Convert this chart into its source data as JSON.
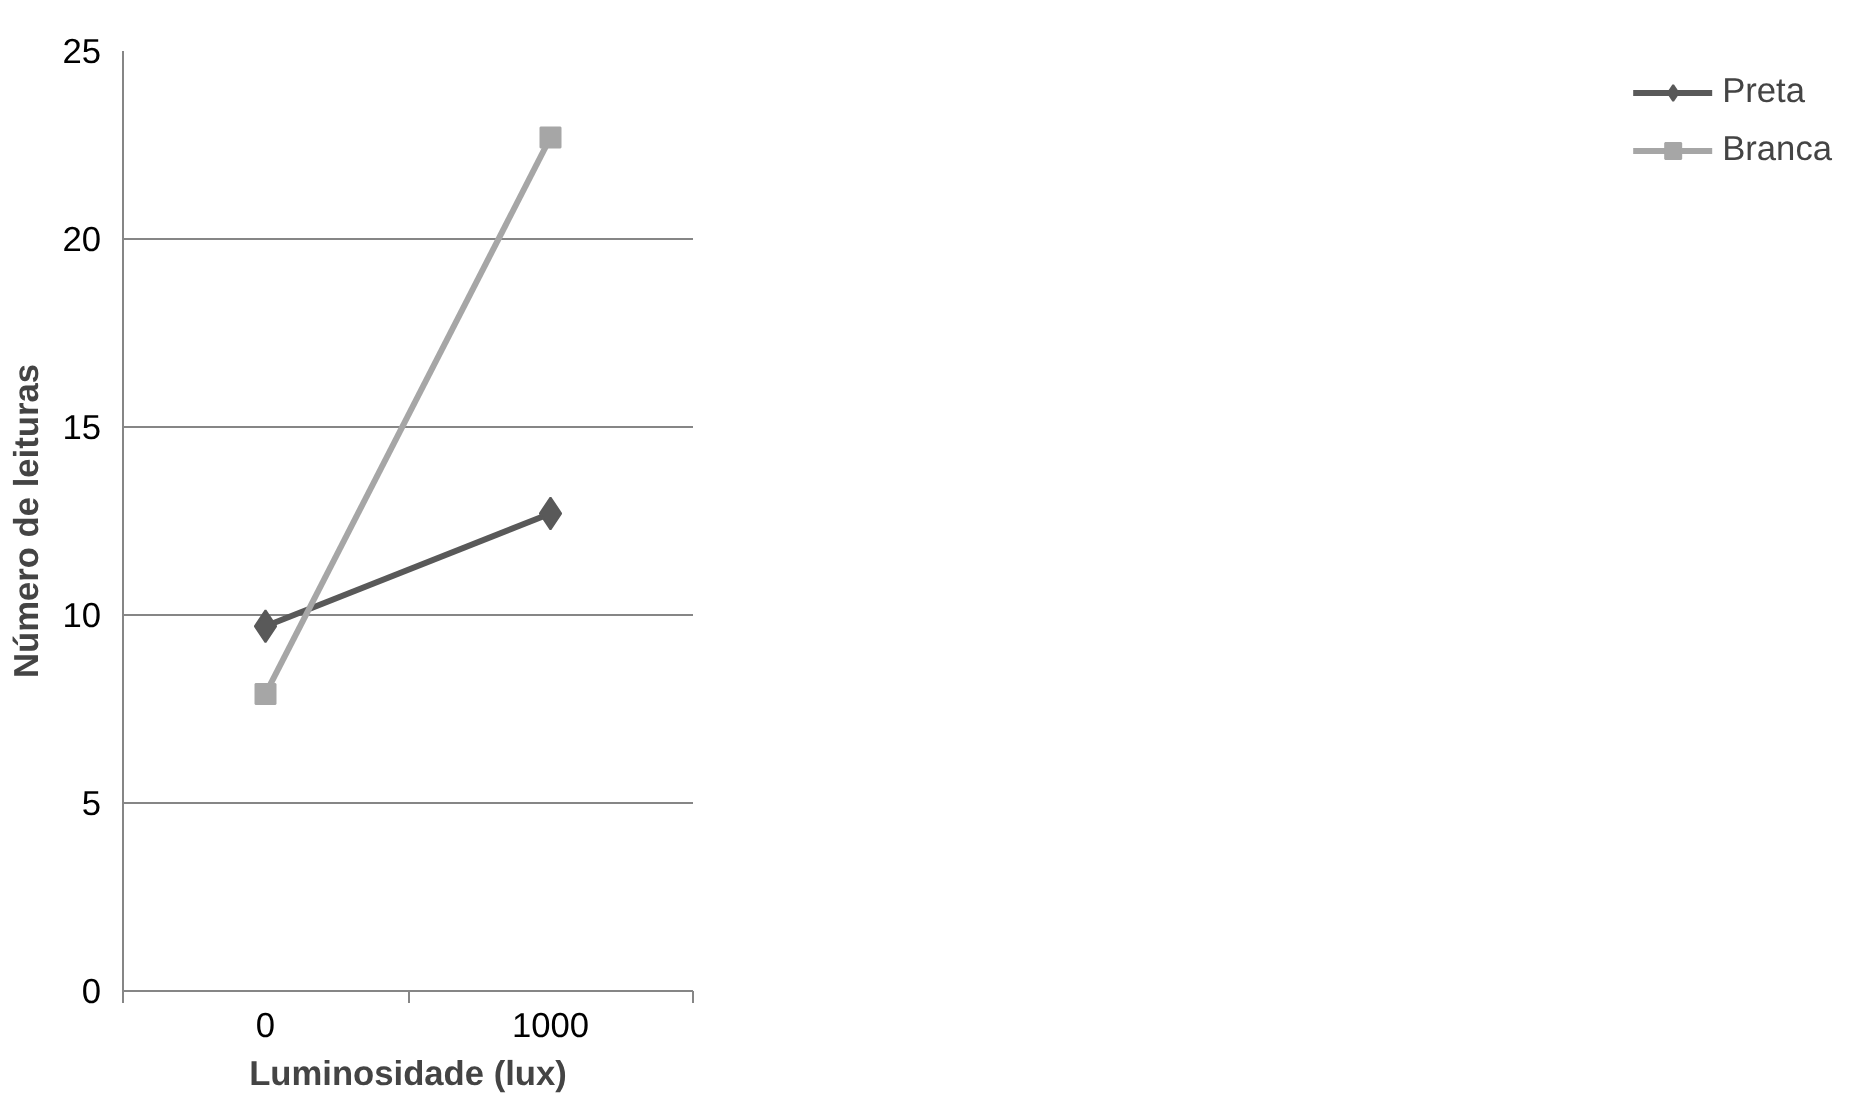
{
  "chart_data": {
    "type": "line",
    "xlabel": "Luminosidade (lux)",
    "ylabel": "Número de leituras",
    "categories": [
      "0",
      "1000"
    ],
    "series": [
      {
        "name": "Preta",
        "color": "#595959",
        "values": [
          9.7,
          12.7
        ],
        "marker": "diamond"
      },
      {
        "name": "Branca",
        "color": "#a6a6a6",
        "values": [
          7.9,
          22.7
        ],
        "marker": "square"
      }
    ],
    "ylim": [
      0,
      25
    ],
    "yticks": [
      0,
      5,
      10,
      15,
      20,
      25
    ],
    "grid": "y",
    "legend": "right",
    "line_style": "solid"
  }
}
